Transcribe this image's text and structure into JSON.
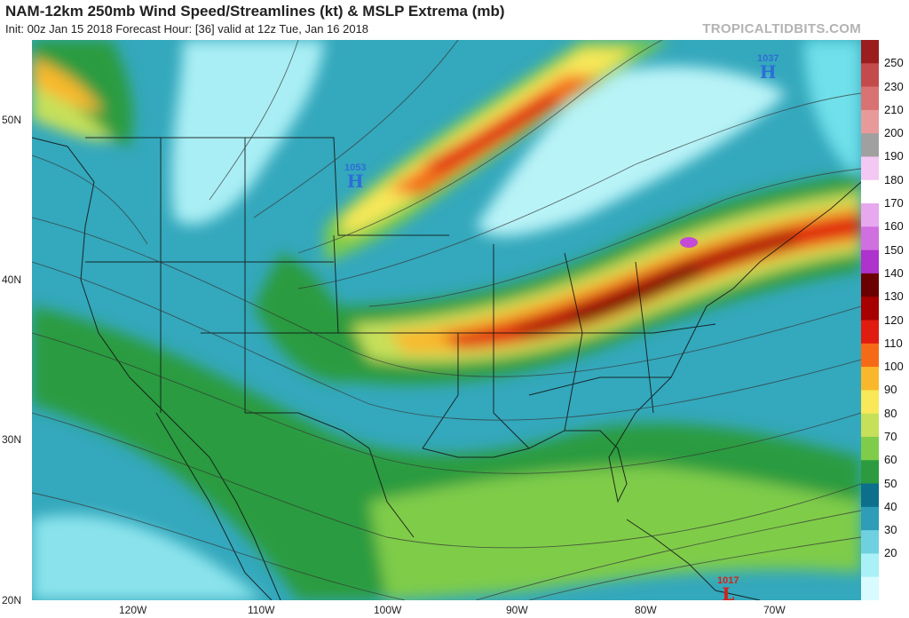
{
  "header": {
    "title": "NAM-12km 250mb Wind Speed/Streamlines (kt) & MSLP Extrema (mb)",
    "subtitle": "Init: 00z Jan 15 2018   Forecast Hour: [36]   valid at 12z Tue, Jan 16 2018",
    "brand": "TROPICALTIDBITS.COM"
  },
  "axes": {
    "lat_labels": [
      "50N",
      "40N",
      "30N",
      "20N"
    ],
    "lon_labels": [
      "120W",
      "110W",
      "100W",
      "90W",
      "80W",
      "70W"
    ]
  },
  "colorbar": {
    "labels": [
      "250",
      "230",
      "210",
      "200",
      "190",
      "180",
      "170",
      "160",
      "150",
      "140",
      "130",
      "120",
      "110",
      "100",
      "90",
      "80",
      "70",
      "60",
      "50",
      "40",
      "30",
      "20"
    ],
    "colors": [
      "#9a1e1e",
      "#c44b4b",
      "#d97272",
      "#e89a9a",
      "#a0a0a0",
      "#f3c8f3",
      "#ffffff",
      "#e6a9ee",
      "#d06fe0",
      "#ad33cc",
      "#6b0000",
      "#a60000",
      "#e01b10",
      "#f56a17",
      "#f9b82b",
      "#f8e85a",
      "#c6e05a",
      "#7fcc4a",
      "#2c9b3f",
      "#0c6f8c",
      "#2f9cb8",
      "#6fd0e0",
      "#aaf0f7",
      "#d8fbff"
    ]
  },
  "extrema": [
    {
      "value": "1053",
      "symbol": "H",
      "color": "#2c6fd6"
    },
    {
      "value": "1037",
      "symbol": "H",
      "color": "#2c6fd6"
    },
    {
      "value": "1017",
      "symbol": "L",
      "color": "#d2231c"
    }
  ]
}
